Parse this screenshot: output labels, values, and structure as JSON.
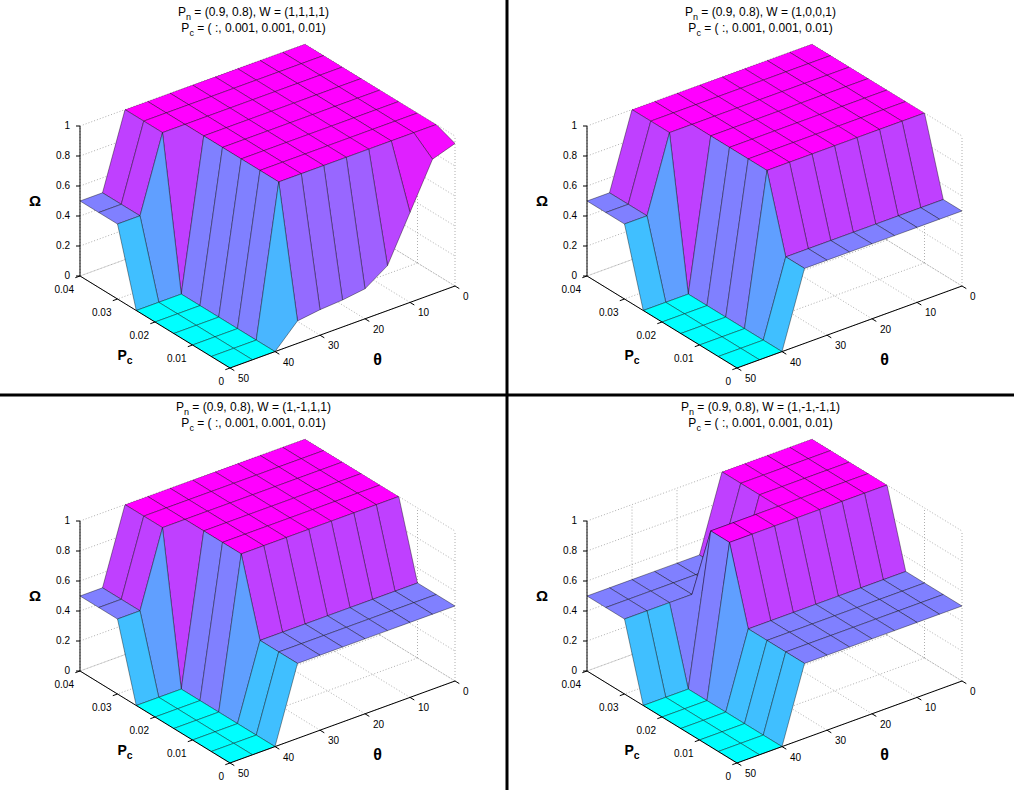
{
  "chart_data": [
    {
      "type": "surface",
      "title": "Pn = (0.9, 0.8), W = (1,1,1,1)",
      "subtitle": "Pc = ( :, 0.001, 0.001, 0.01)",
      "x_label": "Pc",
      "y_label": "θ",
      "z_label": "Ω",
      "x": [
        0,
        0.005,
        0.01,
        0.015,
        0.02,
        0.025,
        0.03,
        0.035,
        0.04
      ],
      "y": [
        0,
        5,
        10,
        15,
        20,
        25,
        30,
        35,
        40,
        45,
        50
      ],
      "z": [
        [
          0.95,
          0.9,
          0.6,
          0.3,
          0.2,
          0.18,
          0.17,
          0.15,
          0,
          0,
          0
        ],
        [
          1,
          1,
          1,
          1,
          1,
          1,
          1,
          1,
          0,
          0,
          0
        ],
        [
          1,
          1,
          1,
          1,
          1,
          1,
          1,
          1,
          0,
          0,
          0
        ],
        [
          1,
          1,
          1,
          1,
          1,
          1,
          1,
          1,
          0,
          0,
          0
        ],
        [
          1,
          1,
          1,
          1,
          1,
          1,
          1,
          1,
          0,
          0,
          0
        ],
        [
          1,
          1,
          1,
          1,
          1,
          1,
          1,
          1,
          0,
          0,
          0
        ],
        [
          1,
          1,
          1,
          1,
          1,
          1,
          1,
          1,
          1,
          0.5,
          0.5
        ],
        [
          1,
          1,
          1,
          1,
          1,
          1,
          1,
          1,
          1,
          0.5,
          0.5
        ],
        [
          1,
          1,
          1,
          1,
          1,
          1,
          1,
          1,
          1,
          0.5,
          0.5
        ]
      ],
      "xlim": [
        0,
        0.04
      ],
      "ylim": [
        0,
        50
      ],
      "zlim": [
        0,
        1
      ],
      "xticks": [
        0,
        0.01,
        0.02,
        0.03,
        0.04
      ],
      "yticks": [
        0,
        10,
        20,
        30,
        40,
        50
      ],
      "zticks": [
        0,
        0.2,
        0.4,
        0.6,
        0.8,
        1
      ],
      "grid": true
    },
    {
      "type": "surface",
      "title": "Pn = (0.9, 0.8), W = (1,0,0,1)",
      "subtitle": "Pc = ( :, 0.001, 0.001, 0.01)",
      "x_label": "Pc",
      "y_label": "θ",
      "z_label": "Ω",
      "x": [
        0,
        0.005,
        0.01,
        0.015,
        0.02,
        0.025,
        0.03,
        0.035,
        0.04
      ],
      "y": [
        0,
        5,
        10,
        15,
        20,
        25,
        30,
        35,
        40,
        45,
        50
      ],
      "z": [
        [
          0.5,
          0.5,
          0.5,
          0.5,
          0.5,
          0.5,
          0.5,
          0.5,
          0,
          0,
          0
        ],
        [
          0.5,
          0.5,
          0.5,
          0.5,
          0.5,
          0.5,
          0.5,
          0.5,
          0,
          0,
          0
        ],
        [
          1,
          1,
          1,
          1,
          1,
          1,
          1,
          1,
          0,
          0,
          0
        ],
        [
          1,
          1,
          1,
          1,
          1,
          1,
          1,
          1,
          0,
          0,
          0
        ],
        [
          1,
          1,
          1,
          1,
          1,
          1,
          1,
          1,
          0,
          0,
          0
        ],
        [
          1,
          1,
          1,
          1,
          1,
          1,
          1,
          1,
          0,
          0,
          0
        ],
        [
          1,
          1,
          1,
          1,
          1,
          1,
          1,
          1,
          1,
          0.5,
          0.5
        ],
        [
          1,
          1,
          1,
          1,
          1,
          1,
          1,
          1,
          1,
          0.5,
          0.5
        ],
        [
          1,
          1,
          1,
          1,
          1,
          1,
          1,
          1,
          1,
          0.5,
          0.5
        ]
      ],
      "xlim": [
        0,
        0.04
      ],
      "ylim": [
        0,
        50
      ],
      "zlim": [
        0,
        1
      ],
      "xticks": [
        0,
        0.01,
        0.02,
        0.03,
        0.04
      ],
      "yticks": [
        0,
        10,
        20,
        30,
        40,
        50
      ],
      "zticks": [
        0,
        0.2,
        0.4,
        0.6,
        0.8,
        1
      ],
      "grid": true
    },
    {
      "type": "surface",
      "title": "Pn = (0.9, 0.8), W = (1,-1,1,1)",
      "subtitle": "Pc = ( :, 0.001, 0.001, 0.01)",
      "x_label": "Pc",
      "y_label": "θ",
      "z_label": "Ω",
      "x": [
        0,
        0.005,
        0.01,
        0.015,
        0.02,
        0.025,
        0.03,
        0.035,
        0.04
      ],
      "y": [
        0,
        5,
        10,
        15,
        20,
        25,
        30,
        35,
        40,
        45,
        50
      ],
      "z": [
        [
          0.5,
          0.5,
          0.5,
          0.5,
          0.5,
          0.5,
          0.5,
          0.5,
          0,
          0,
          0
        ],
        [
          0.5,
          0.5,
          0.5,
          0.5,
          0.5,
          0.5,
          0.5,
          0.5,
          0,
          0,
          0
        ],
        [
          0.5,
          0.5,
          0.5,
          0.5,
          0.5,
          0.5,
          0.5,
          0.5,
          0,
          0,
          0
        ],
        [
          1,
          1,
          1,
          1,
          1,
          1,
          1,
          1,
          0,
          0,
          0
        ],
        [
          1,
          1,
          1,
          1,
          1,
          1,
          1,
          1,
          0,
          0,
          0
        ],
        [
          1,
          1,
          1,
          1,
          1,
          1,
          1,
          1,
          0,
          0,
          0
        ],
        [
          1,
          1,
          1,
          1,
          1,
          1,
          1,
          1,
          1,
          0.5,
          0.5
        ],
        [
          1,
          1,
          1,
          1,
          1,
          1,
          1,
          1,
          1,
          0.5,
          0.5
        ],
        [
          1,
          1,
          1,
          1,
          1,
          1,
          1,
          1,
          1,
          0.5,
          0.5
        ]
      ],
      "xlim": [
        0,
        0.04
      ],
      "ylim": [
        0,
        50
      ],
      "zlim": [
        0,
        1
      ],
      "xticks": [
        0,
        0.01,
        0.02,
        0.03,
        0.04
      ],
      "yticks": [
        0,
        10,
        20,
        30,
        40,
        50
      ],
      "zticks": [
        0,
        0.2,
        0.4,
        0.6,
        0.8,
        1
      ],
      "grid": true
    },
    {
      "type": "surface",
      "title": "Pn = (0.9, 0.8), W = (1,-1,-1,1)",
      "subtitle": "Pc = ( :, 0.001, 0.001, 0.01)",
      "x_label": "Pc",
      "y_label": "θ",
      "z_label": "Ω",
      "x": [
        0,
        0.005,
        0.01,
        0.015,
        0.02,
        0.025,
        0.03,
        0.035,
        0.04
      ],
      "y": [
        0,
        5,
        10,
        15,
        20,
        25,
        30,
        35,
        40,
        45,
        50
      ],
      "z": [
        [
          0.5,
          0.5,
          0.5,
          0.5,
          0.5,
          0.5,
          0.5,
          0.5,
          0,
          0,
          0
        ],
        [
          0.5,
          0.5,
          0.5,
          0.5,
          0.5,
          0.5,
          0.5,
          0.5,
          0,
          0,
          0
        ],
        [
          0.5,
          0.5,
          0.5,
          0.5,
          0.5,
          0.5,
          0.5,
          0.5,
          0,
          0,
          0
        ],
        [
          0.5,
          0.5,
          0.5,
          0.5,
          0.5,
          0.5,
          0.5,
          0.5,
          0,
          0,
          0
        ],
        [
          1,
          1,
          1,
          1,
          1,
          1,
          1,
          1,
          0,
          0,
          0
        ],
        [
          1,
          1,
          1,
          1,
          1,
          1,
          1,
          1,
          0,
          0,
          0
        ],
        [
          1,
          1,
          1,
          1,
          1,
          0.5,
          0.5,
          0.5,
          0.5,
          0.5,
          0.5
        ],
        [
          1,
          1,
          1,
          1,
          1,
          0.5,
          0.5,
          0.5,
          0.5,
          0.5,
          0.5
        ],
        [
          1,
          1,
          1,
          1,
          1,
          0.5,
          0.5,
          0.5,
          0.5,
          0.5,
          0.5
        ]
      ],
      "xlim": [
        0,
        0.04
      ],
      "ylim": [
        0,
        50
      ],
      "zlim": [
        0,
        1
      ],
      "xticks": [
        0,
        0.01,
        0.02,
        0.03,
        0.04
      ],
      "yticks": [
        0,
        10,
        20,
        30,
        40,
        50
      ],
      "zticks": [
        0,
        0.2,
        0.4,
        0.6,
        0.8,
        1
      ],
      "grid": true
    }
  ]
}
